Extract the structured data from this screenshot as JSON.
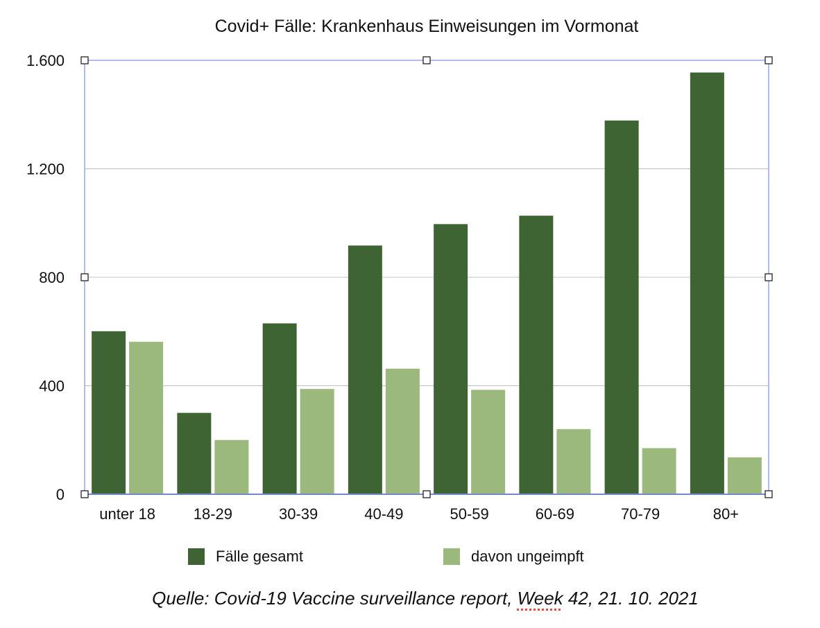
{
  "colors": {
    "series1": "#3e6433",
    "series2": "#9bb97c",
    "grid": "#bfbfbf",
    "axis": "#1f2d6b",
    "selection": "#8fa9e8"
  },
  "source": {
    "prefix": "Quelle: Covid-19 Vaccine surveillance report, ",
    "flagged_word": "Week",
    "suffix": " 42, 21. 10. 2021"
  },
  "chart_data": {
    "type": "bar",
    "title": "Covid+ Fälle: Krankenhaus Einweisungen im Vormonat",
    "xlabel": "",
    "ylabel": "",
    "categories": [
      "unter 18",
      "18-29",
      "30-39",
      "40-49",
      "50-59",
      "60-69",
      "70-79",
      "80+"
    ],
    "series": [
      {
        "name": "Fälle gesamt",
        "values": [
          601,
          300,
          630,
          917,
          996,
          1027,
          1378,
          1555
        ]
      },
      {
        "name": "davon ungeimpft",
        "values": [
          562,
          200,
          388,
          463,
          385,
          240,
          170,
          136
        ]
      }
    ],
    "ylim": [
      0,
      1600
    ],
    "yticks": [
      0,
      400,
      800,
      1200,
      1600
    ],
    "ytick_labels": [
      "0",
      "400",
      "800",
      "1.200",
      "1.600"
    ],
    "grid": true,
    "legend_position": "bottom"
  }
}
